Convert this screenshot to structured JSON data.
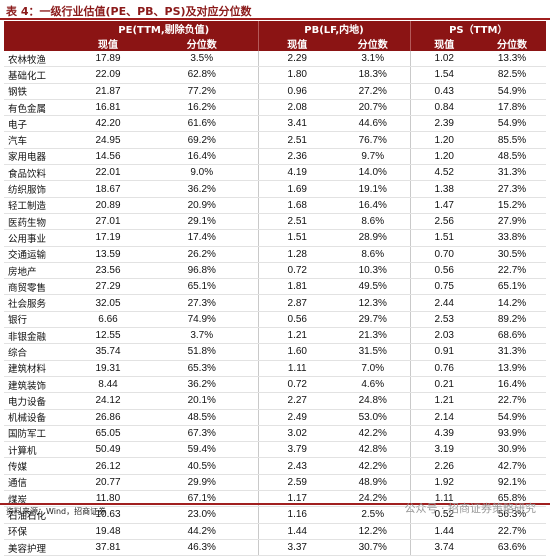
{
  "title": "表 4：一级行业估值(PE、PB、PS)及对应分位数",
  "header": {
    "groups": [
      "PE(TTM,剔除负值)",
      "PB(LF,内地)",
      "PS（TTM）"
    ],
    "sub": [
      "现值",
      "分位数",
      "现值",
      "分位数",
      "现值",
      "分位数"
    ]
  },
  "rows": [
    [
      "农林牧渔",
      "17.89",
      "3.5%",
      "2.29",
      "3.1%",
      "1.02",
      "13.3%"
    ],
    [
      "基础化工",
      "22.09",
      "62.8%",
      "1.80",
      "18.3%",
      "1.54",
      "82.5%"
    ],
    [
      "钢铁",
      "21.87",
      "77.2%",
      "0.96",
      "27.2%",
      "0.43",
      "54.9%"
    ],
    [
      "有色金属",
      "16.81",
      "16.2%",
      "2.08",
      "20.7%",
      "0.84",
      "17.8%"
    ],
    [
      "电子",
      "42.20",
      "61.6%",
      "3.41",
      "44.6%",
      "2.39",
      "54.9%"
    ],
    [
      "汽车",
      "24.95",
      "69.2%",
      "2.51",
      "76.7%",
      "1.20",
      "85.5%"
    ],
    [
      "家用电器",
      "14.56",
      "16.4%",
      "2.36",
      "9.7%",
      "1.20",
      "48.5%"
    ],
    [
      "食品饮料",
      "22.01",
      "9.0%",
      "4.19",
      "14.0%",
      "4.52",
      "31.3%"
    ],
    [
      "纺织服饰",
      "18.67",
      "36.2%",
      "1.69",
      "19.1%",
      "1.38",
      "27.3%"
    ],
    [
      "轻工制造",
      "20.89",
      "20.9%",
      "1.68",
      "16.4%",
      "1.47",
      "15.2%"
    ],
    [
      "医药生物",
      "27.01",
      "29.1%",
      "2.51",
      "8.6%",
      "2.56",
      "27.9%"
    ],
    [
      "公用事业",
      "17.19",
      "17.4%",
      "1.51",
      "28.9%",
      "1.51",
      "33.8%"
    ],
    [
      "交通运输",
      "13.59",
      "26.2%",
      "1.28",
      "8.6%",
      "0.70",
      "30.5%"
    ],
    [
      "房地产",
      "23.56",
      "96.8%",
      "0.72",
      "10.3%",
      "0.56",
      "22.7%"
    ],
    [
      "商贸零售",
      "27.29",
      "65.1%",
      "1.81",
      "49.5%",
      "0.75",
      "65.1%"
    ],
    [
      "社会服务",
      "32.05",
      "27.3%",
      "2.87",
      "12.3%",
      "2.44",
      "14.2%"
    ],
    [
      "银行",
      "6.66",
      "74.9%",
      "0.56",
      "29.7%",
      "2.53",
      "89.2%"
    ],
    [
      "非银金融",
      "12.55",
      "3.7%",
      "1.21",
      "21.3%",
      "2.03",
      "68.6%"
    ],
    [
      "综合",
      "35.74",
      "51.8%",
      "1.60",
      "31.5%",
      "0.91",
      "31.3%"
    ],
    [
      "建筑材料",
      "19.31",
      "65.3%",
      "1.11",
      "7.0%",
      "0.76",
      "13.9%"
    ],
    [
      "建筑装饰",
      "8.44",
      "36.2%",
      "0.72",
      "4.6%",
      "0.21",
      "16.4%"
    ],
    [
      "电力设备",
      "24.12",
      "20.1%",
      "2.27",
      "24.8%",
      "1.21",
      "22.7%"
    ],
    [
      "机械设备",
      "26.86",
      "48.5%",
      "2.49",
      "53.0%",
      "2.14",
      "54.9%"
    ],
    [
      "国防军工",
      "65.05",
      "67.3%",
      "3.02",
      "42.2%",
      "4.39",
      "93.9%"
    ],
    [
      "计算机",
      "50.49",
      "59.4%",
      "3.79",
      "42.8%",
      "3.19",
      "30.9%"
    ],
    [
      "传媒",
      "26.12",
      "40.5%",
      "2.43",
      "42.2%",
      "2.26",
      "42.7%"
    ],
    [
      "通信",
      "20.77",
      "29.9%",
      "2.59",
      "48.9%",
      "1.92",
      "92.1%"
    ],
    [
      "煤炭",
      "11.80",
      "67.1%",
      "1.17",
      "24.2%",
      "1.11",
      "65.8%"
    ],
    [
      "石油石化",
      "10.63",
      "23.0%",
      "1.16",
      "2.5%",
      "0.52",
      "56.3%"
    ],
    [
      "环保",
      "19.48",
      "44.2%",
      "1.44",
      "12.2%",
      "1.44",
      "22.7%"
    ],
    [
      "美容护理",
      "37.81",
      "46.3%",
      "3.37",
      "30.7%",
      "3.74",
      "63.6%"
    ]
  ],
  "source": "资料来源：Wind，招商证券",
  "watermark": "公众号 · 招商证券策略研究"
}
